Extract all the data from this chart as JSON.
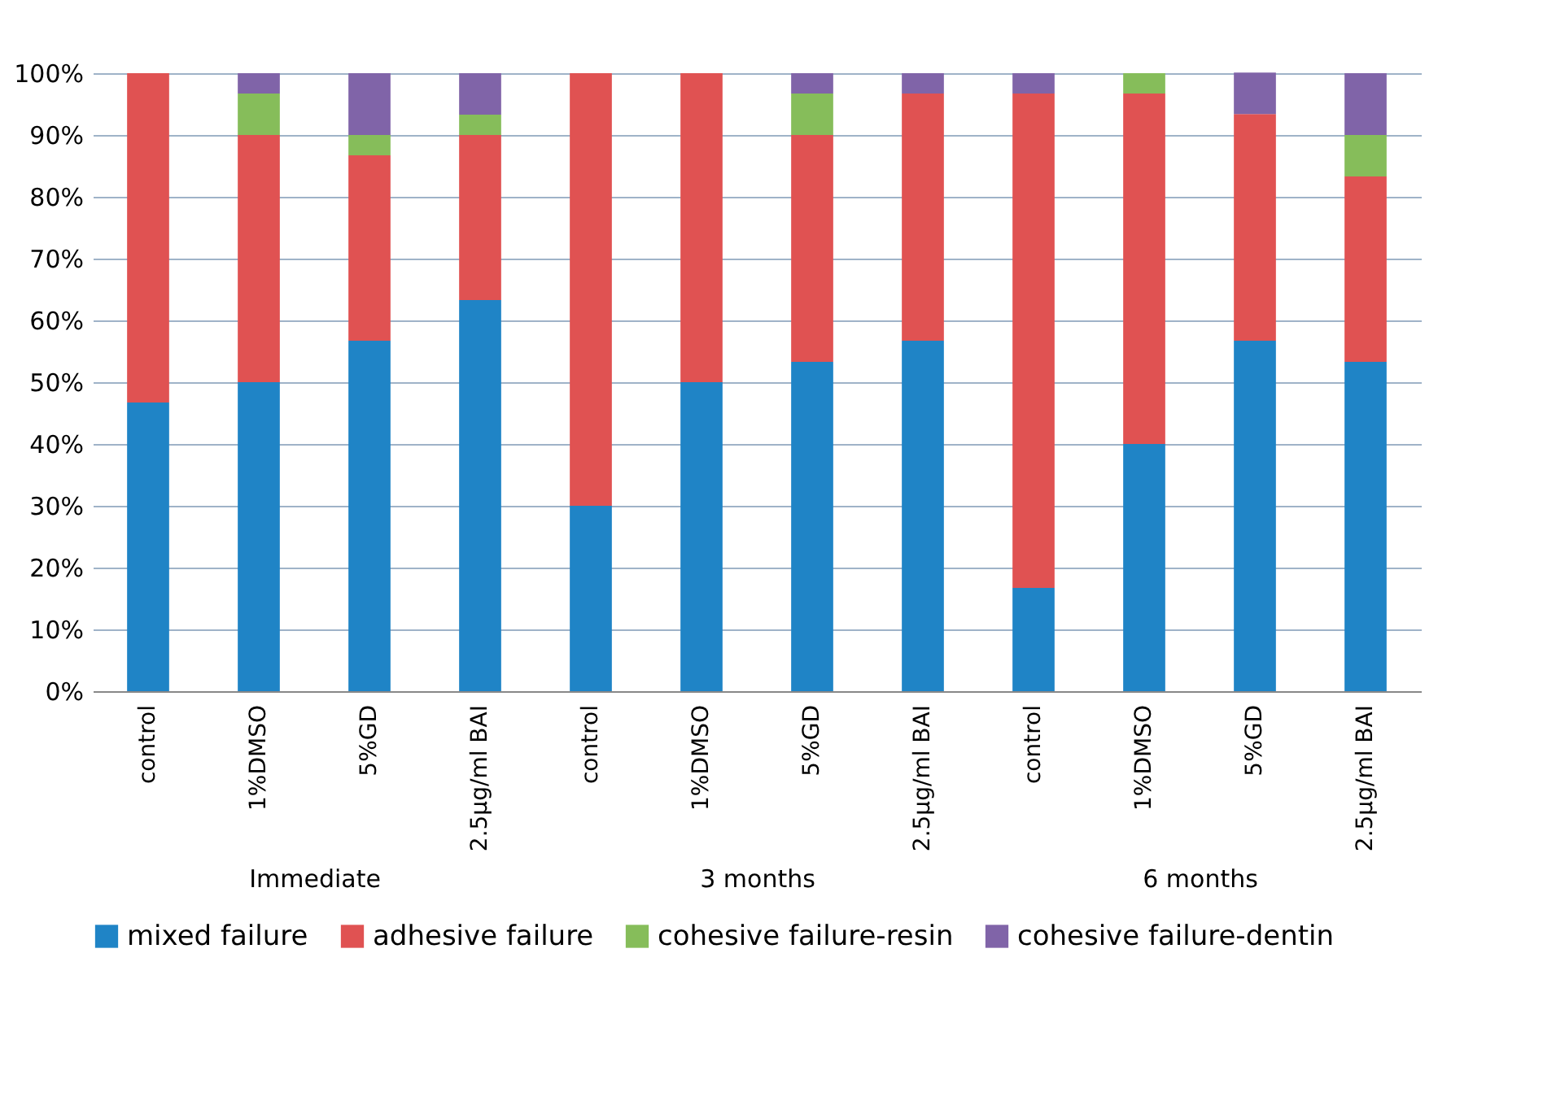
{
  "chart_data": {
    "type": "bar",
    "stacked": true,
    "categories": [
      "control",
      "1%DMSO",
      "5%GD",
      "2.5µg/ml BAI",
      "control",
      "1%DMSO",
      "5%GD",
      "2.5µg/ml BAI",
      "control",
      "1%DMSO",
      "5%GD",
      "2.5µg/ml BAI"
    ],
    "annotations": [
      "Immediate",
      "3 months",
      "6 months"
    ],
    "series": [
      {
        "name": "mixed failure",
        "color": "#1f84c6",
        "values": [
          46.7,
          50,
          56.7,
          63.3,
          30,
          50,
          53.3,
          56.7,
          16.7,
          40,
          56.7,
          53.3
        ]
      },
      {
        "name": "adhesive failure",
        "color": "#e05252",
        "values": [
          53.3,
          40,
          30,
          26.7,
          70,
          50,
          36.7,
          40,
          80,
          56.7,
          36.7,
          30
        ]
      },
      {
        "name": "cohesive failure-resin",
        "color": "#86bd5a",
        "values": [
          0,
          6.7,
          3.3,
          3.3,
          0,
          0,
          6.7,
          0,
          0,
          3.3,
          0,
          6.7
        ]
      },
      {
        "name": "cohesive failure-dentin",
        "color": "#8064a8",
        "values": [
          0,
          3.3,
          10,
          6.7,
          0,
          0,
          3.3,
          3.3,
          3.3,
          0,
          6.7,
          10
        ]
      }
    ],
    "ylim": [
      0,
      100
    ],
    "yticks": [
      {
        "value": 0,
        "label": "0%"
      },
      {
        "value": 10,
        "label": "10%"
      },
      {
        "value": 20,
        "label": "20%"
      },
      {
        "value": 30,
        "label": "30%"
      },
      {
        "value": 40,
        "label": "40%"
      },
      {
        "value": 50,
        "label": "50%"
      },
      {
        "value": 60,
        "label": "60%"
      },
      {
        "value": 70,
        "label": "70%"
      },
      {
        "value": 80,
        "label": "80%"
      },
      {
        "value": 90,
        "label": "90%"
      },
      {
        "value": 100,
        "label": "100%"
      }
    ],
    "grid": "y",
    "legend": "bottom"
  }
}
